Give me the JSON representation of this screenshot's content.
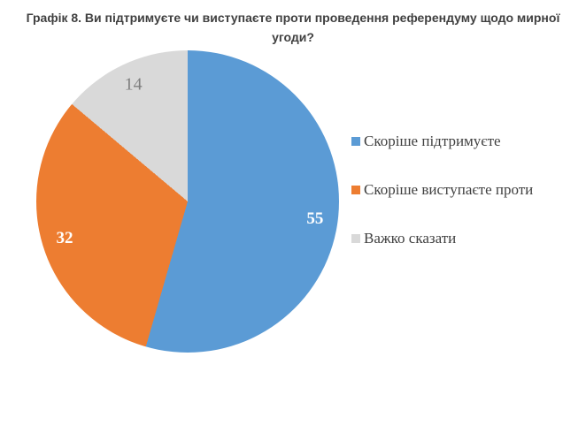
{
  "chart_data": {
    "type": "pie",
    "title": "Графік 8. Ви підтримуєте чи виступаєте проти проведення референдуму щодо мирної угоди?",
    "slices": [
      {
        "label": "Скоріше підтримуєте",
        "value": 55,
        "color": "#5B9BD5",
        "label_color": "#FFFFFF",
        "label_style": "bold"
      },
      {
        "label": "Скоріше виступаєте проти",
        "value": 32,
        "color": "#ED7D31",
        "label_color": "#FFFFFF",
        "label_style": "bold"
      },
      {
        "label": "Важко сказати",
        "value": 14,
        "color": "#D9D9D9",
        "label_color": "#7F7F7F",
        "label_style": "regular"
      }
    ],
    "start_angle_deg": 0,
    "direction": "clockwise",
    "data_labels": "values",
    "legend_position": "right",
    "label_radius_fraction": 0.85,
    "title_color": "#404040",
    "legend_text_color": "#404040",
    "background": "#FFFFFF"
  }
}
